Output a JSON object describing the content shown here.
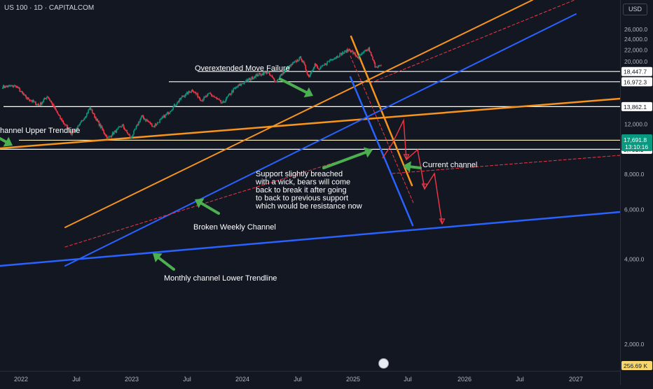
{
  "header": {
    "symbol_line": "US 100 · 1D · CAPITALCOM"
  },
  "axis": {
    "currency_label": "USD"
  },
  "chart_data": {
    "type": "line",
    "title": "US 100 · 1D · CAPITALCOM",
    "y_scale": "log",
    "ylim": [
      1800,
      27500
    ],
    "grid": false,
    "y_ticks": [
      "26,000.0",
      "24,000.0",
      "22,000.0",
      "20,000.0",
      "12,000.0",
      "8,000.0",
      "6,000.0",
      "4,000.0",
      "2,000.0"
    ],
    "x_ticks": [
      "2022",
      "Jul",
      "2023",
      "Jul",
      "2024",
      "Jul",
      "2025",
      "Jul",
      "2026",
      "Jul",
      "2027"
    ],
    "price_levels": [
      {
        "label": "18,447.7",
        "value": 18447.7,
        "color": "#ffffff"
      },
      {
        "label": "16,972.3",
        "value": 16972.3,
        "color": "#ffffff"
      },
      {
        "label": "13,862.1",
        "value": 13862.1,
        "color": "#ffffff"
      },
      {
        "label": "10,537.2",
        "value": 10537.2,
        "color": "#fff3c4"
      },
      {
        "label": "9,791.1",
        "value": 9791.1,
        "color": "#ffffff"
      }
    ],
    "last_price": {
      "label": "17,691.8",
      "countdown": "13:10:16",
      "color": "#089981"
    },
    "bottom_value": {
      "label": "256.69 K",
      "color": "#f5d76e"
    },
    "price_series": [
      {
        "date": "2021-11-01",
        "close": 16300
      },
      {
        "date": "2021-12-15",
        "close": 16400
      },
      {
        "date": "2022-01-15",
        "close": 15000
      },
      {
        "date": "2022-03-01",
        "close": 14000
      },
      {
        "date": "2022-03-29",
        "close": 15100
      },
      {
        "date": "2022-05-10",
        "close": 12600
      },
      {
        "date": "2022-06-16",
        "close": 11150
      },
      {
        "date": "2022-07-10",
        "close": 11800
      },
      {
        "date": "2022-08-16",
        "close": 13700
      },
      {
        "date": "2022-09-15",
        "close": 12000
      },
      {
        "date": "2022-10-13",
        "close": 10700
      },
      {
        "date": "2022-11-30",
        "close": 11900
      },
      {
        "date": "2022-12-28",
        "close": 10700
      },
      {
        "date": "2023-02-02",
        "close": 12800
      },
      {
        "date": "2023-03-13",
        "close": 11800
      },
      {
        "date": "2023-05-01",
        "close": 13200
      },
      {
        "date": "2023-06-15",
        "close": 15000
      },
      {
        "date": "2023-07-19",
        "close": 15900
      },
      {
        "date": "2023-08-18",
        "close": 14600
      },
      {
        "date": "2023-09-14",
        "close": 15400
      },
      {
        "date": "2023-10-26",
        "close": 14200
      },
      {
        "date": "2023-12-01",
        "close": 15900
      },
      {
        "date": "2024-01-01",
        "close": 16800
      },
      {
        "date": "2024-02-15",
        "close": 17900
      },
      {
        "date": "2024-03-21",
        "close": 18300
      },
      {
        "date": "2024-04-19",
        "close": 17000
      },
      {
        "date": "2024-05-20",
        "close": 18700
      },
      {
        "date": "2024-07-10",
        "close": 20700
      },
      {
        "date": "2024-08-05",
        "close": 17700
      },
      {
        "date": "2024-08-25",
        "close": 19600
      },
      {
        "date": "2024-09-06",
        "close": 18700
      },
      {
        "date": "2024-10-15",
        "close": 20300
      },
      {
        "date": "2024-11-10",
        "close": 21000
      },
      {
        "date": "2024-12-16",
        "close": 22100
      },
      {
        "date": "2025-01-13",
        "close": 20700
      },
      {
        "date": "2025-02-18",
        "close": 22200
      },
      {
        "date": "2025-03-11",
        "close": 19300
      },
      {
        "date": "2025-03-31",
        "close": 19200
      },
      {
        "date": "2025-04-03",
        "close": 17700
      }
    ],
    "annotations": [
      {
        "text": "Overextended Move Failure"
      },
      {
        "text": "hannel Upper Trendline"
      },
      {
        "text": "Current channel"
      },
      {
        "text": "Support slightly breached with a wick, bears will come back to break it after going to back to previous support which would be resistance now"
      },
      {
        "text": "Broken Weekly Channel"
      },
      {
        "text": "Monthly channel Lower Trendline"
      }
    ],
    "colors": {
      "orange": "#f7941d",
      "blue": "#2962ff",
      "red": "#f23645",
      "green": "#4caf50",
      "candle_up": "#089981",
      "candle_down": "#f23645"
    }
  }
}
